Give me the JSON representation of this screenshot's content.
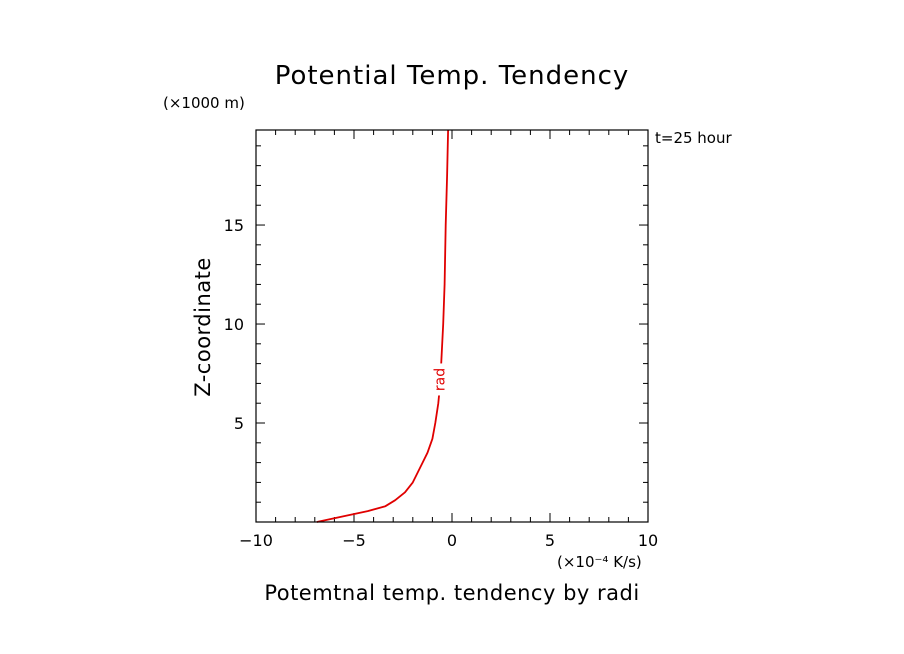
{
  "chart_data": {
    "type": "line",
    "title": "Potential Temp. Tendency",
    "xlabel": "Potemtnal temp. tendency by radi",
    "ylabel": "Z-coordinate",
    "x_unit": "(×10⁻⁴ K/s)",
    "y_unit": "(×1000 m)",
    "annotation": "t=25 hour",
    "xlim": [
      -10,
      10
    ],
    "ylim": [
      0,
      19.8
    ],
    "x_ticks": [
      -10,
      -5,
      0,
      5,
      10
    ],
    "x_tick_labels": [
      "−10",
      "−5",
      "0",
      "5",
      "10"
    ],
    "y_ticks": [
      5,
      10,
      15
    ],
    "y_tick_labels": [
      "5",
      "10",
      "15"
    ],
    "grid": false,
    "series": [
      {
        "name": "rad",
        "color": "#e00000",
        "x": [
          -6.9,
          -5.5,
          -4.3,
          -3.4,
          -2.9,
          -2.4,
          -2.0,
          -1.75,
          -1.5,
          -1.25,
          -1.0,
          -0.85,
          -0.7,
          -0.6,
          -0.55,
          -0.5,
          -0.45,
          -0.38,
          -0.32,
          -0.25,
          -0.2
        ],
        "y": [
          0.0,
          0.3,
          0.55,
          0.8,
          1.1,
          1.5,
          2.0,
          2.5,
          3.0,
          3.5,
          4.2,
          5.0,
          6.0,
          7.0,
          8.0,
          9.0,
          10.0,
          12.0,
          15.0,
          17.5,
          19.8
        ]
      }
    ]
  }
}
